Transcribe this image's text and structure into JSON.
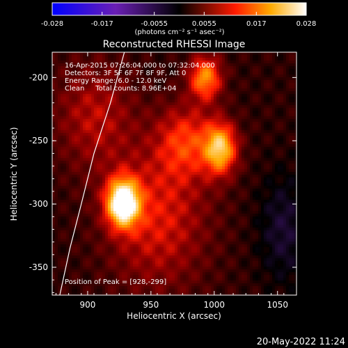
{
  "colorbar": {
    "ticks": [
      "-0.028",
      "-0.017",
      "-0.0055",
      "0.0055",
      "0.017",
      "0.028"
    ],
    "unit_label": "(photons cm⁻² s⁻¹ asec⁻²)",
    "range": [
      -0.028,
      0.028
    ],
    "colormap": "blue-purple-black-red-orange-yellow-white"
  },
  "chart_data": {
    "type": "heatmap",
    "title": "Reconstructed RHESSI Image",
    "annotations": [
      "16-Apr-2015 07:26:04.000 to 07:32:04.000",
      "Detectors: 3F 5F 6F 7F 8F 9F, Att 0",
      "Energy Range: 6.0 - 12.0 keV",
      "Clean     Total counts: 8.96E+04"
    ],
    "peak_label": "Position of Peak = [928,-299]",
    "xlabel": "Heliocentric X (arcsec)",
    "ylabel": "Heliocentric Y (arcsec)",
    "xlim": [
      872,
      1065
    ],
    "ylim": [
      -372,
      -180
    ],
    "x_ticks": [
      "900",
      "950",
      "1000",
      "1050"
    ],
    "y_ticks": [
      "-200",
      "-250",
      "-300",
      "-350"
    ],
    "sources": [
      {
        "x": 928,
        "y": -299,
        "sx": 9,
        "sy": 13,
        "amp": 0.028
      },
      {
        "x": 1005,
        "y": -256,
        "sx": 9,
        "sy": 14,
        "amp": 0.019
      },
      {
        "x": 993,
        "y": -200,
        "sx": 9,
        "sy": 12,
        "amp": 0.016
      },
      {
        "x": 978,
        "y": -250,
        "sx": 16,
        "sy": 20,
        "amp": 0.01
      },
      {
        "x": 955,
        "y": -310,
        "sx": 28,
        "sy": 40,
        "amp": 0.009
      },
      {
        "x": 905,
        "y": -230,
        "sx": 22,
        "sy": 30,
        "amp": 0.007
      },
      {
        "x": 1055,
        "y": -320,
        "sx": 14,
        "sy": 30,
        "amp": -0.006
      }
    ],
    "limb": [
      [
        929,
        -180
      ],
      [
        918,
        -220
      ],
      [
        905,
        -260
      ],
      [
        895,
        -300
      ],
      [
        886,
        -335
      ],
      [
        878,
        -372
      ]
    ],
    "footer": "20-May-2022 11:24"
  }
}
